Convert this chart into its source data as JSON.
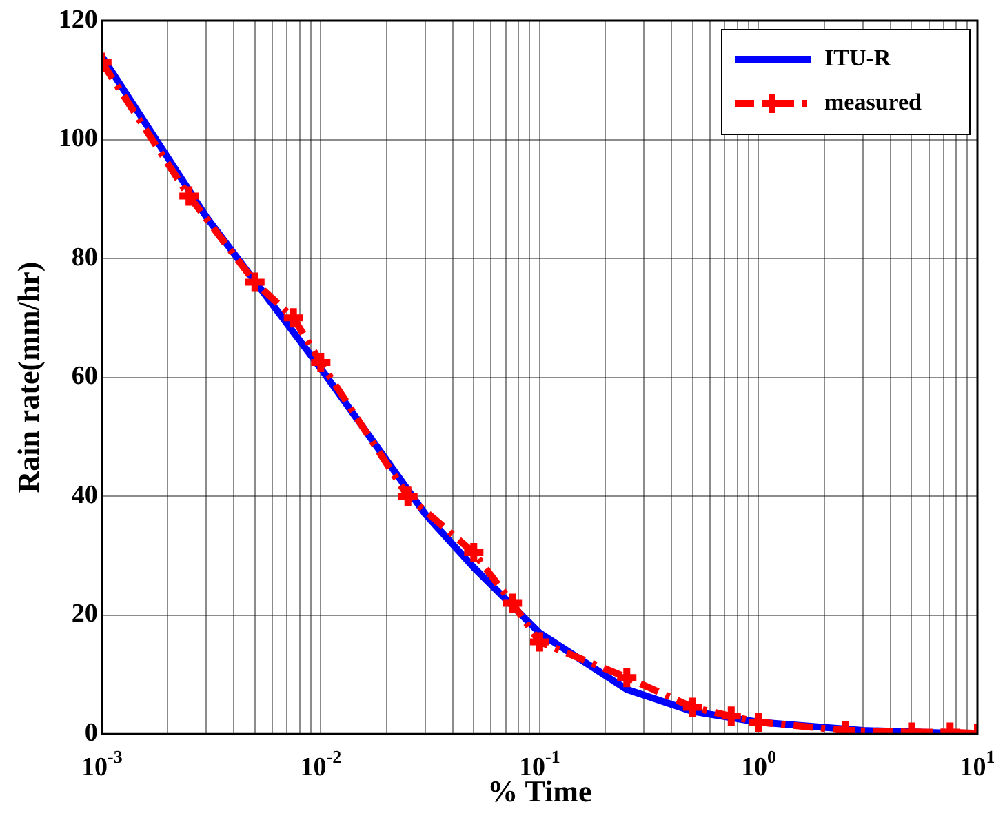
{
  "chart_data": {
    "type": "line",
    "xlabel": "% Time",
    "ylabel": "Rain rate(mm/hr)",
    "log": "x",
    "grid": true,
    "legend": "top right",
    "xlim": [
      0.001,
      10
    ],
    "ylim": [
      0,
      120
    ],
    "yticks": [
      0,
      20,
      40,
      60,
      80,
      100,
      120
    ],
    "xticks": [
      {
        "value": 0.001,
        "label": "10$^{-3}$"
      },
      {
        "value": 0.002,
        "label": null
      },
      {
        "value": 0.003,
        "label": null
      },
      {
        "value": 0.004,
        "label": null
      },
      {
        "value": 0.005,
        "label": null
      },
      {
        "value": 0.006,
        "label": null
      },
      {
        "value": 0.007,
        "label": null
      },
      {
        "value": 0.008,
        "label": null
      },
      {
        "value": 0.009,
        "label": null
      },
      {
        "value": 0.01,
        "label": "10$^{-2}$"
      },
      {
        "value": 0.02,
        "label": null
      },
      {
        "value": 0.03,
        "label": null
      },
      {
        "value": 0.04,
        "label": null
      },
      {
        "value": 0.05,
        "label": null
      },
      {
        "value": 0.06,
        "label": null
      },
      {
        "value": 0.07,
        "label": null
      },
      {
        "value": 0.08,
        "label": null
      },
      {
        "value": 0.09,
        "label": null
      },
      {
        "value": 0.1,
        "label": "10$^{-1}$"
      },
      {
        "value": 0.2,
        "label": null
      },
      {
        "value": 0.3,
        "label": null
      },
      {
        "value": 0.4,
        "label": null
      },
      {
        "value": 0.5,
        "label": null
      },
      {
        "value": 0.6,
        "label": null
      },
      {
        "value": 0.7,
        "label": null
      },
      {
        "value": 0.8,
        "label": null
      },
      {
        "value": 0.9,
        "label": null
      },
      {
        "value": 1,
        "label": "10$^{0}$"
      },
      {
        "value": 2,
        "label": null
      },
      {
        "value": 3,
        "label": null
      },
      {
        "value": 4,
        "label": null
      },
      {
        "value": 5,
        "label": null
      },
      {
        "value": 6,
        "label": null
      },
      {
        "value": 7,
        "label": null
      },
      {
        "value": 8,
        "label": null
      },
      {
        "value": 9,
        "label": null
      },
      {
        "value": 10,
        "label": "10$^{1}$"
      }
    ],
    "series": [
      {
        "name": "ITU-R",
        "color": "#0000ff",
        "line_style": "solid",
        "marker": "none",
        "x": [
          0.001,
          0.003,
          0.01,
          0.03,
          0.05,
          0.1,
          0.25,
          0.5,
          1,
          3,
          10
        ],
        "values": [
          114,
          87,
          61.5,
          37,
          28,
          17,
          7.5,
          3.8,
          2,
          0.6,
          0
        ]
      },
      {
        "name": "measured",
        "color": "#ff0000",
        "line_style": "dashed",
        "marker": "cross",
        "x": [
          0.001,
          0.0025,
          0.005,
          0.0075,
          0.01,
          0.025,
          0.05,
          0.075,
          0.1,
          0.25,
          0.5,
          0.75,
          1,
          2.5,
          5,
          7.5,
          10
        ],
        "values": [
          113,
          90.5,
          76,
          70,
          62.5,
          40,
          30.5,
          22,
          15.5,
          9.5,
          4.5,
          3,
          2,
          0.6,
          0.3,
          0.3,
          0.1
        ]
      }
    ]
  }
}
